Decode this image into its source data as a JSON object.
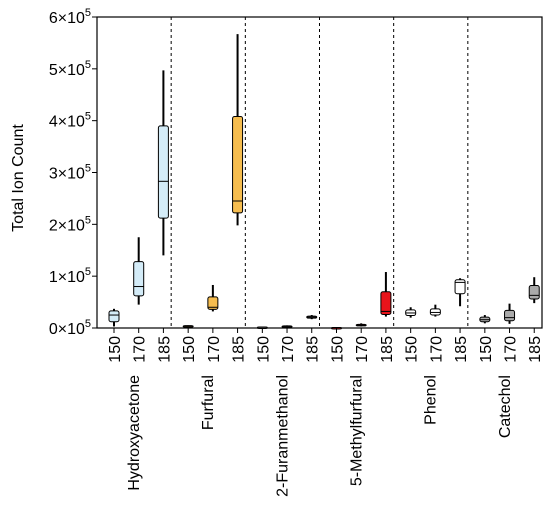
{
  "chart_data": {
    "type": "box",
    "ylabel": "Total Ion Count",
    "ylim": [
      0,
      600000
    ],
    "yticks": [
      {
        "value": 0,
        "mant": "0",
        "exp": "5"
      },
      {
        "value": 100000,
        "mant": "1",
        "exp": "5"
      },
      {
        "value": 200000,
        "mant": "2",
        "exp": "5"
      },
      {
        "value": 300000,
        "mant": "3",
        "exp": "5"
      },
      {
        "value": 400000,
        "mant": "4",
        "exp": "5"
      },
      {
        "value": 500000,
        "mant": "5",
        "exp": "5"
      },
      {
        "value": 600000,
        "mant": "6",
        "exp": "5"
      }
    ],
    "times_label": "×10",
    "grid": false,
    "groups": [
      {
        "name": "Hydroxyacetone",
        "color": "#d4ecf8",
        "boxes": [
          {
            "x": "150",
            "min": 3000,
            "q1": 12000,
            "median": 25000,
            "q3": 33000,
            "max": 37000
          },
          {
            "x": "170",
            "min": 45000,
            "q1": 62000,
            "median": 80000,
            "q3": 128000,
            "max": 175000
          },
          {
            "x": "185",
            "min": 140000,
            "q1": 212000,
            "median": 283000,
            "q3": 390000,
            "max": 497000
          }
        ]
      },
      {
        "name": "Furfural",
        "color": "#f6bd4f",
        "boxes": [
          {
            "x": "150",
            "min": 2000,
            "q1": 2500,
            "median": 3500,
            "q3": 4500,
            "max": 5000
          },
          {
            "x": "170",
            "min": 32000,
            "q1": 36000,
            "median": 40000,
            "q3": 60000,
            "max": 83000
          },
          {
            "x": "185",
            "min": 198000,
            "q1": 222000,
            "median": 245000,
            "q3": 408000,
            "max": 567000
          }
        ]
      },
      {
        "name": "2-Furanmethanol",
        "color": "#888888",
        "boxes": [
          {
            "x": "150",
            "min": 500,
            "q1": 1000,
            "median": 1500,
            "q3": 2000,
            "max": 2500
          },
          {
            "x": "170",
            "min": 1000,
            "q1": 2000,
            "median": 3000,
            "q3": 4000,
            "max": 5000
          },
          {
            "x": "185",
            "min": 17000,
            "q1": 19000,
            "median": 21000,
            "q3": 23000,
            "max": 25000
          }
        ]
      },
      {
        "name": "5-Methylfurfural",
        "color": "#e8141b",
        "boxes": [
          {
            "x": "150",
            "min": 300,
            "q1": 500,
            "median": 700,
            "q3": 900,
            "max": 1200
          },
          {
            "x": "170",
            "min": 3000,
            "q1": 4000,
            "median": 5500,
            "q3": 7000,
            "max": 9000
          },
          {
            "x": "185",
            "min": 22000,
            "q1": 26000,
            "median": 32000,
            "q3": 70000,
            "max": 108000
          }
        ]
      },
      {
        "name": "Phenol",
        "color": "#ffffff",
        "boxes": [
          {
            "x": "150",
            "min": 20000,
            "q1": 24000,
            "median": 29000,
            "q3": 35000,
            "max": 40000
          },
          {
            "x": "170",
            "min": 22000,
            "q1": 25000,
            "median": 30000,
            "q3": 37000,
            "max": 45000
          },
          {
            "x": "185",
            "min": 42000,
            "q1": 66000,
            "median": 88000,
            "q3": 93000,
            "max": 96000
          }
        ]
      },
      {
        "name": "Catechol",
        "color": "#aaaaaa",
        "boxes": [
          {
            "x": "150",
            "min": 9000,
            "q1": 12000,
            "median": 16000,
            "q3": 21000,
            "max": 25000
          },
          {
            "x": "170",
            "min": 8000,
            "q1": 14000,
            "median": 20000,
            "q3": 34000,
            "max": 47000
          },
          {
            "x": "185",
            "min": 48000,
            "q1": 56000,
            "median": 63000,
            "q3": 82000,
            "max": 98000
          }
        ]
      }
    ]
  }
}
